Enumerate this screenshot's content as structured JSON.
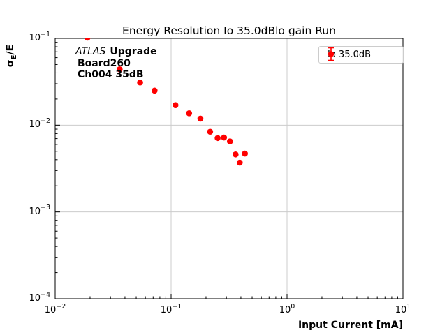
{
  "title": "Energy Resolution Io 35.0dBlo gain Run",
  "annotation": {
    "experiment": "ATLAS",
    "experiment_suffix": "Upgrade",
    "board": "Board260",
    "channel": "Ch004 35dB"
  },
  "legend": {
    "entry_label": "Io 35.0dB",
    "marker_color": "#ff0000"
  },
  "axes": {
    "x_label": "Input Current [mA]",
    "y_label_sigma": "σ",
    "y_label_sub": "E",
    "y_label_rest": "/E"
  },
  "chart_data": {
    "type": "scatter",
    "title": "Energy Resolution Io 35.0dBlo gain Run",
    "xlabel": "Input Current [mA]",
    "ylabel": "sigma_E/E",
    "xscale": "log",
    "yscale": "log",
    "xlim": [
      0.01,
      10
    ],
    "ylim": [
      0.0001,
      0.1
    ],
    "grid": true,
    "grid_color": "#cccccc",
    "legend_position": "upper right",
    "x_ticks": [
      {
        "value": 0.01,
        "label": "10^−2"
      },
      {
        "value": 0.1,
        "label": "10^−1"
      },
      {
        "value": 1,
        "label": "10^0"
      },
      {
        "value": 10,
        "label": "10^1"
      }
    ],
    "y_ticks": [
      {
        "value": 0.1,
        "label": "10^−1"
      },
      {
        "value": 0.01,
        "label": "10^−2"
      },
      {
        "value": 0.001,
        "label": "10^−3"
      },
      {
        "value": 0.0001,
        "label": "10^−4"
      }
    ],
    "series": [
      {
        "name": "Io 35.0dB",
        "color": "#ff0000",
        "marker": "circle-with-errorbars",
        "points": [
          [
            0.019,
            0.102
          ],
          [
            0.036,
            0.044
          ],
          [
            0.054,
            0.031
          ],
          [
            0.072,
            0.025
          ],
          [
            0.109,
            0.017
          ],
          [
            0.143,
            0.0137
          ],
          [
            0.179,
            0.0119
          ],
          [
            0.217,
            0.0084
          ],
          [
            0.252,
            0.0071
          ],
          [
            0.286,
            0.0072
          ],
          [
            0.322,
            0.0065
          ],
          [
            0.36,
            0.0046
          ],
          [
            0.391,
            0.0037
          ],
          [
            0.433,
            0.0047
          ]
        ]
      }
    ]
  }
}
